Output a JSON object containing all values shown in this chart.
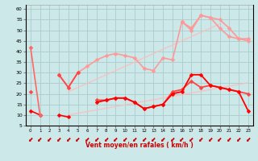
{
  "bg_color": "#cce8e8",
  "grid_color": "#aacccc",
  "xlabel": "Vent moyen/en rafales ( km/h )",
  "xlabel_color": "#cc0000",
  "xlim": [
    -0.5,
    23.5
  ],
  "ylim": [
    5,
    62
  ],
  "yticks": [
    5,
    10,
    15,
    20,
    25,
    30,
    35,
    40,
    45,
    50,
    55,
    60
  ],
  "xticks": [
    0,
    1,
    2,
    3,
    4,
    5,
    6,
    7,
    8,
    9,
    10,
    11,
    12,
    13,
    14,
    15,
    16,
    17,
    18,
    19,
    20,
    21,
    22,
    23
  ],
  "series": [
    {
      "label": "trend_upper",
      "y": [
        null,
        null,
        null,
        null,
        21,
        23,
        25,
        27,
        29,
        31,
        33,
        35,
        37,
        39,
        41,
        43,
        45,
        47,
        49,
        51,
        53,
        null,
        null,
        null
      ],
      "color": "#ffbbbb",
      "alpha": 0.8,
      "lw": 1.0,
      "marker": null
    },
    {
      "label": "trend_lower",
      "y": [
        null,
        null,
        null,
        null,
        10,
        10.8,
        11.6,
        12.4,
        13.2,
        14,
        14.8,
        15.6,
        16.4,
        17.2,
        18,
        18.8,
        19.6,
        20.4,
        21.2,
        22,
        22.8,
        23.6,
        24.4,
        25.2
      ],
      "color": "#ffbbbb",
      "alpha": 0.8,
      "lw": 1.0,
      "marker": null
    },
    {
      "label": "rafales_max",
      "y": [
        null,
        null,
        null,
        29,
        23,
        30,
        33,
        36,
        38,
        39,
        38,
        37,
        32,
        31,
        37,
        36,
        54,
        51,
        57,
        56,
        55,
        51,
        46,
        46
      ],
      "color": "#ff9999",
      "alpha": 1.0,
      "lw": 1.2,
      "marker": "D"
    },
    {
      "label": "rafales_max2",
      "y": [
        null,
        null,
        null,
        null,
        null,
        null,
        null,
        null,
        null,
        null,
        null,
        null,
        null,
        null,
        null,
        null,
        54,
        50,
        57,
        56,
        51,
        47,
        46,
        45
      ],
      "color": "#ff9999",
      "alpha": 1.0,
      "lw": 1.2,
      "marker": "D"
    },
    {
      "label": "vent_moyen1",
      "y": [
        21,
        null,
        null,
        29,
        23,
        30,
        null,
        17,
        17,
        18,
        18,
        16,
        13,
        14,
        15,
        21,
        22,
        26,
        23,
        24,
        23,
        22,
        21,
        20
      ],
      "color": "#ff4444",
      "alpha": 1.0,
      "lw": 1.3,
      "marker": "D"
    },
    {
      "label": "vent_moyen2",
      "y": [
        null,
        null,
        null,
        null,
        null,
        null,
        null,
        16,
        17,
        18,
        18,
        16,
        13,
        14,
        15,
        20,
        21,
        29,
        29,
        24,
        23,
        22,
        21,
        12
      ],
      "color": "#ff0000",
      "alpha": 1.0,
      "lw": 1.3,
      "marker": "D"
    },
    {
      "label": "min_line",
      "y": [
        12,
        10,
        null,
        10,
        9,
        null,
        null,
        null,
        null,
        null,
        null,
        null,
        null,
        null,
        null,
        null,
        null,
        null,
        null,
        null,
        null,
        null,
        null,
        null
      ],
      "color": "#ff0000",
      "alpha": 1.0,
      "lw": 1.2,
      "marker": "D"
    },
    {
      "label": "peak_line",
      "y": [
        42,
        10,
        null,
        null,
        null,
        null,
        null,
        null,
        null,
        null,
        null,
        null,
        null,
        null,
        null,
        null,
        null,
        null,
        null,
        null,
        null,
        null,
        null,
        null
      ],
      "color": "#ff6666",
      "alpha": 1.0,
      "lw": 1.2,
      "marker": "D"
    }
  ],
  "marker_size": 2.5,
  "marker_ew": 0.3
}
